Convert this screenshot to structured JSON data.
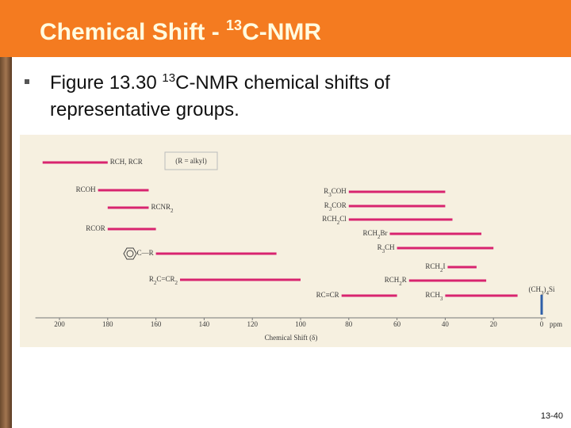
{
  "slide": {
    "title_pre": "Chemical Shift - ",
    "title_sup": "13",
    "title_post": "C-NMR",
    "bullet_pre": "Figure 13.30 ",
    "bullet_sup": "13",
    "bullet_post": "C-NMR chemical shifts of",
    "bullet_line2": "representative groups.",
    "page_number": "13-40"
  },
  "chart_data": {
    "type": "range",
    "x_label": "Chemical Shift (δ)",
    "x_unit": "ppm",
    "annotation": "(R = alkyl)",
    "xlim": [
      210,
      -5
    ],
    "xticks": [
      200,
      180,
      160,
      140,
      120,
      100,
      80,
      60,
      40,
      20,
      0
    ],
    "color": "#d8246f",
    "series": [
      {
        "name": "RCH, RCR",
        "values": [
          207,
          180
        ]
      },
      {
        "name": "RCOH",
        "values": [
          184,
          163
        ]
      },
      {
        "name": "RCNR2",
        "values": [
          180,
          163
        ]
      },
      {
        "name": "RCOR",
        "values": [
          180,
          160
        ]
      },
      {
        "name": "C—R",
        "values": [
          160,
          110
        ]
      },
      {
        "name": "R2C=CR2",
        "values": [
          150,
          100
        ]
      },
      {
        "name": "RC≡CR",
        "values": [
          83,
          60
        ]
      },
      {
        "name": "R3COH",
        "values": [
          80,
          40
        ]
      },
      {
        "name": "R3COR",
        "values": [
          80,
          40
        ]
      },
      {
        "name": "RCH2Cl",
        "values": [
          80,
          37
        ]
      },
      {
        "name": "RCH2Br",
        "values": [
          63,
          25
        ]
      },
      {
        "name": "R3CH",
        "values": [
          60,
          20
        ]
      },
      {
        "name": "RCH2I",
        "values": [
          39,
          27
        ]
      },
      {
        "name": "RCH2R",
        "values": [
          55,
          23
        ]
      },
      {
        "name": "RCH3",
        "values": [
          40,
          10
        ]
      }
    ],
    "reference": {
      "name": "(CH3)4Si",
      "value": 0,
      "color": "#2f5fa8"
    }
  }
}
